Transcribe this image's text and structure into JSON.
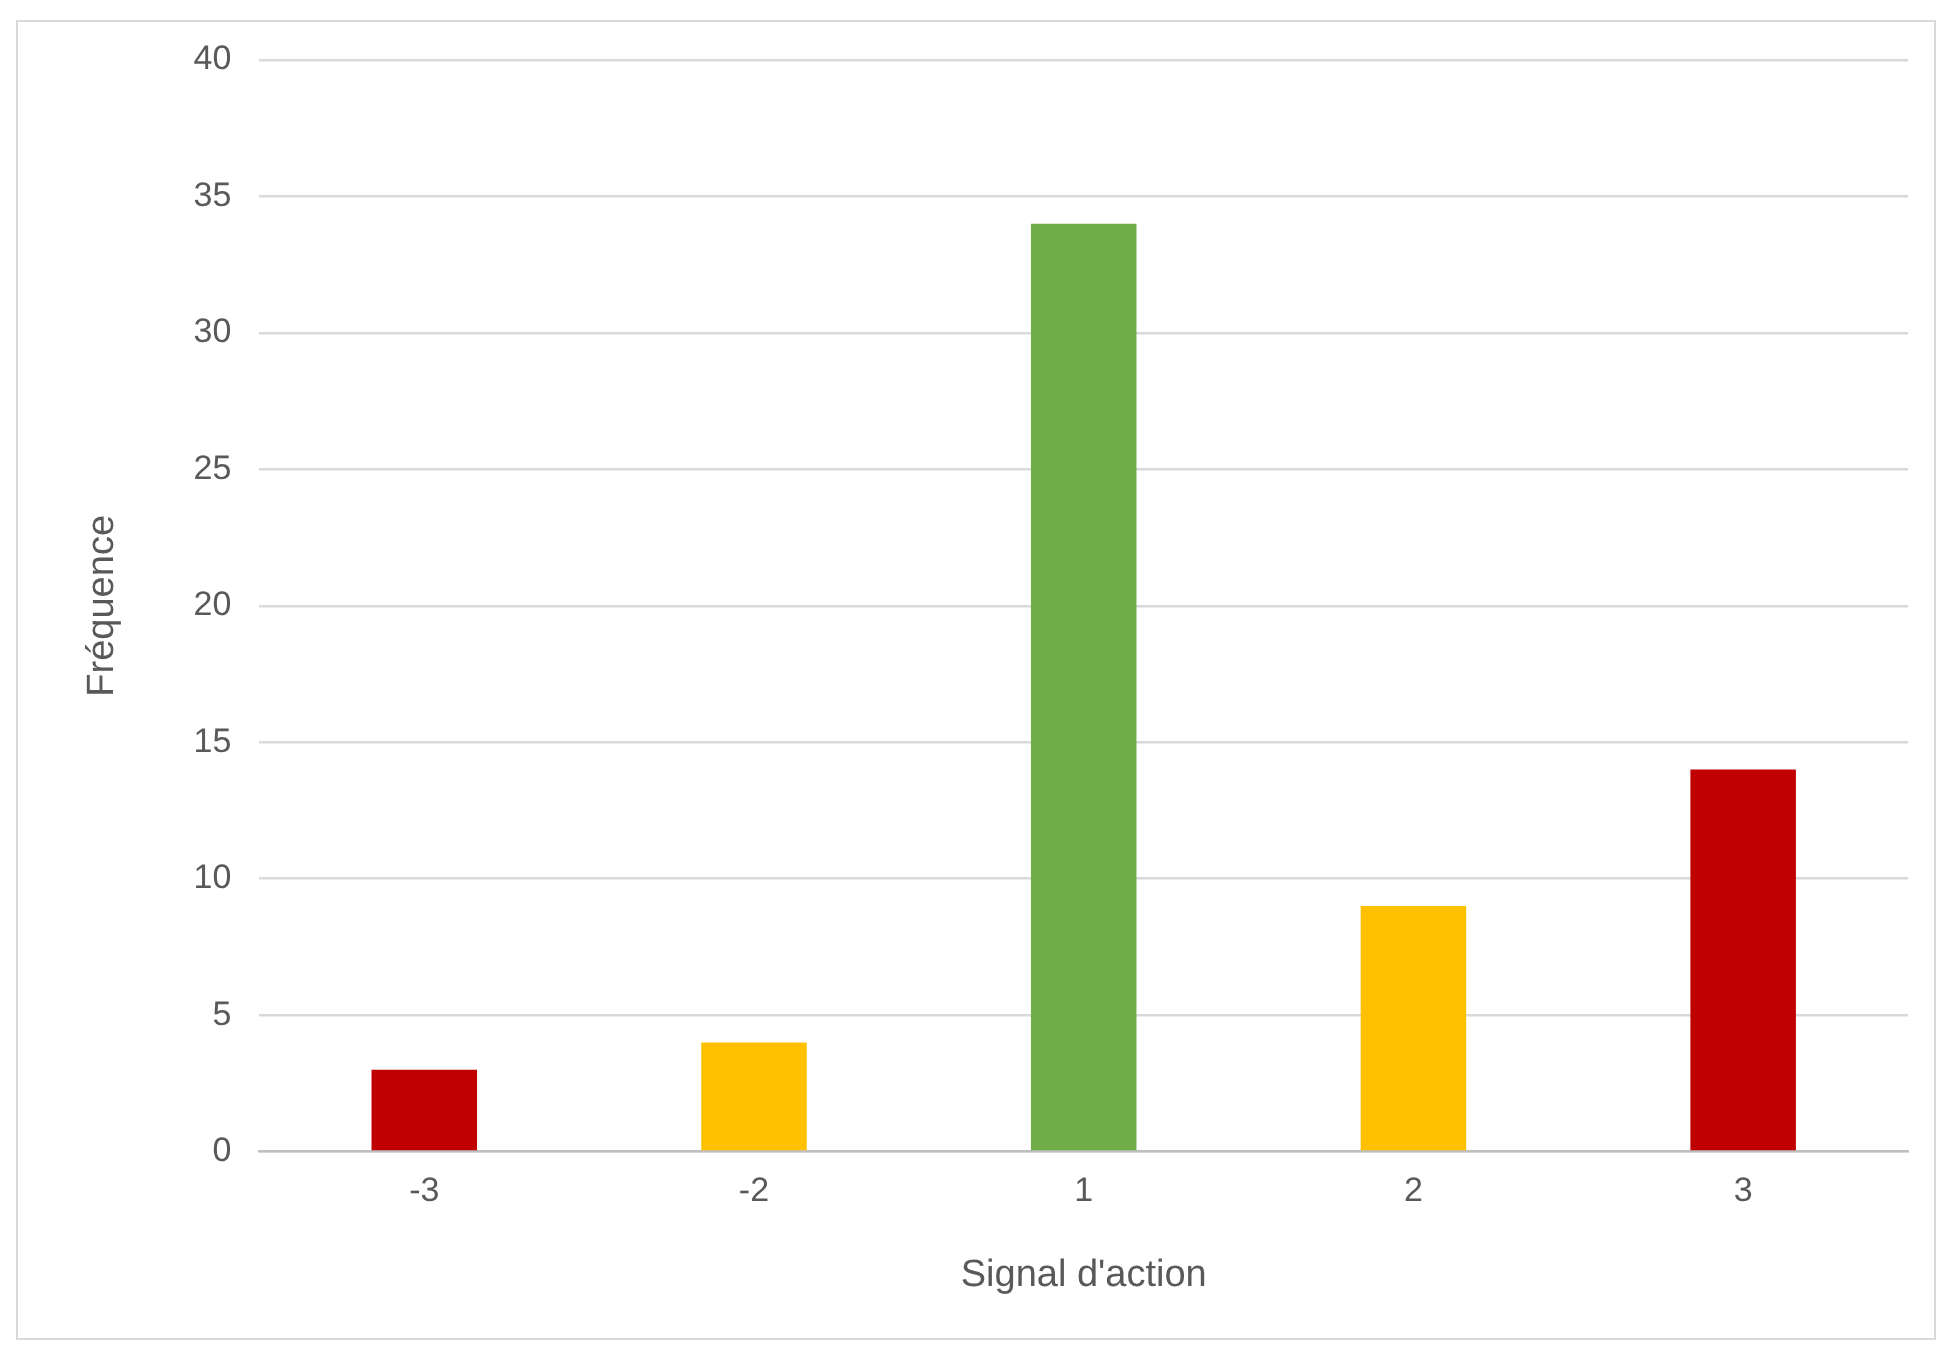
{
  "chart_data": {
    "type": "bar",
    "xlabel": "Signal d'action",
    "ylabel": "Fréquence",
    "categories": [
      "-3",
      "-2",
      "1",
      "2",
      "3"
    ],
    "values": [
      3,
      4,
      34,
      9,
      14
    ],
    "colors": [
      "#c00000",
      "#ffc000",
      "#70ad47",
      "#ffc000",
      "#c00000"
    ],
    "ylim": [
      0,
      40
    ],
    "yticks": [
      0,
      5,
      10,
      15,
      20,
      25,
      30,
      35,
      40
    ],
    "grid": "y",
    "legend": false
  }
}
